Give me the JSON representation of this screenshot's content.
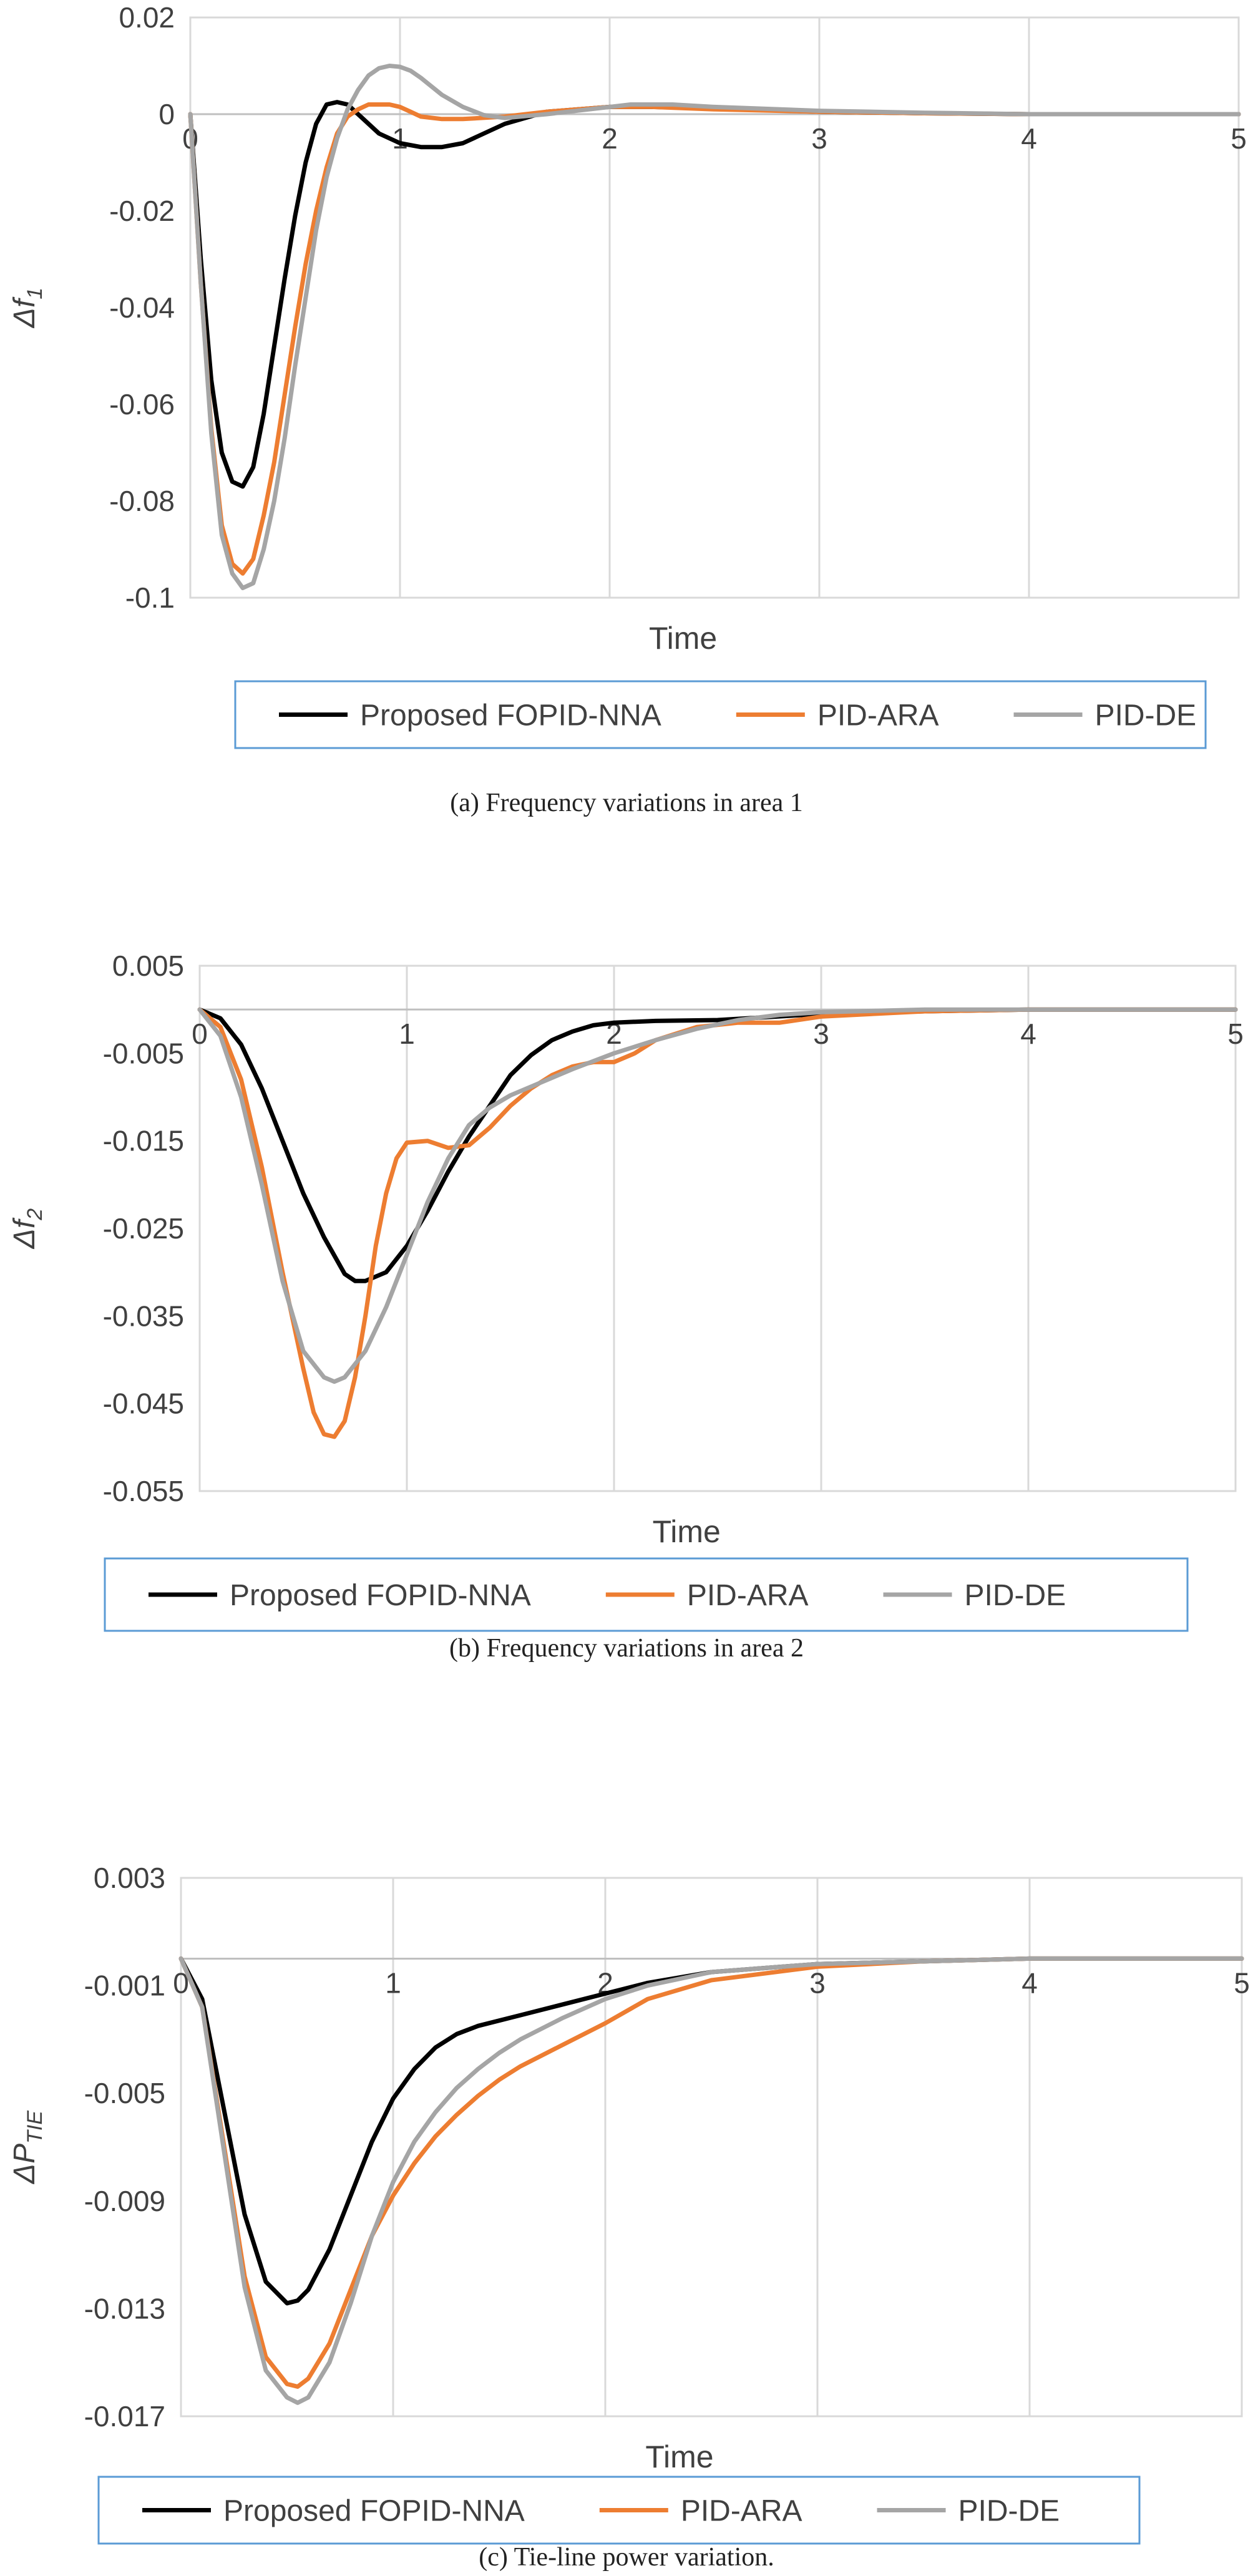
{
  "chart_data": [
    {
      "type": "line",
      "caption": "(a) Frequency variations in area 1",
      "xlabel": "Time",
      "ylabel": {
        "prefix": "Δ",
        "main": "f",
        "sub": "1"
      },
      "xlim": [
        0,
        5
      ],
      "ylim": [
        -0.1,
        0.02
      ],
      "x_ticks": [
        "0",
        "1",
        "2",
        "3",
        "4",
        "5"
      ],
      "y_ticks": [
        {
          "v": 0.02,
          "label": "0.02"
        },
        {
          "v": 0,
          "label": "0"
        },
        {
          "v": -0.02,
          "label": "-0.02"
        },
        {
          "v": -0.04,
          "label": "-0.04"
        },
        {
          "v": -0.06,
          "label": "-0.06"
        },
        {
          "v": -0.08,
          "label": "-0.08"
        },
        {
          "v": -0.1,
          "label": "-0.1"
        }
      ],
      "grid": true,
      "legend_position": "bottom",
      "series": [
        {
          "name": "Proposed FOPID-NNA",
          "color": "#000000",
          "x": [
            0,
            0.05,
            0.1,
            0.15,
            0.2,
            0.25,
            0.3,
            0.35,
            0.4,
            0.45,
            0.5,
            0.55,
            0.6,
            0.65,
            0.7,
            0.75,
            0.8,
            0.85,
            0.9,
            1.0,
            1.1,
            1.2,
            1.3,
            1.4,
            1.5,
            1.7,
            2.0,
            2.2,
            2.5,
            3.0,
            3.5,
            4.0,
            5.0
          ],
          "y": [
            0,
            -0.03,
            -0.055,
            -0.07,
            -0.076,
            -0.077,
            -0.073,
            -0.062,
            -0.048,
            -0.034,
            -0.021,
            -0.01,
            -0.002,
            0.002,
            0.0025,
            0.002,
            0.0,
            -0.002,
            -0.004,
            -0.006,
            -0.0068,
            -0.0068,
            -0.006,
            -0.004,
            -0.002,
            0.0005,
            0.0015,
            0.0015,
            0.0012,
            0.0005,
            0.0002,
            0.0,
            0.0
          ]
        },
        {
          "name": "PID-ARA",
          "color": "#ED7D31",
          "x": [
            0,
            0.05,
            0.1,
            0.15,
            0.2,
            0.25,
            0.3,
            0.35,
            0.4,
            0.45,
            0.5,
            0.55,
            0.6,
            0.65,
            0.7,
            0.75,
            0.8,
            0.85,
            0.9,
            0.95,
            1.0,
            1.05,
            1.1,
            1.2,
            1.3,
            1.5,
            1.7,
            2.0,
            2.2,
            2.5,
            3.0,
            3.5,
            4.0,
            5.0
          ],
          "y": [
            0,
            -0.035,
            -0.065,
            -0.085,
            -0.093,
            -0.095,
            -0.092,
            -0.083,
            -0.072,
            -0.058,
            -0.044,
            -0.031,
            -0.02,
            -0.011,
            -0.004,
            -0.0005,
            0.001,
            0.002,
            0.002,
            0.002,
            0.0015,
            0.0005,
            -0.0005,
            -0.001,
            -0.001,
            -0.0005,
            0.0005,
            0.0015,
            0.0015,
            0.001,
            0.0005,
            0.0002,
            0.0,
            0.0
          ]
        },
        {
          "name": "PID-DE",
          "color": "#A5A5A5",
          "x": [
            0,
            0.05,
            0.1,
            0.15,
            0.2,
            0.25,
            0.3,
            0.35,
            0.4,
            0.45,
            0.5,
            0.55,
            0.6,
            0.65,
            0.7,
            0.75,
            0.8,
            0.85,
            0.9,
            0.95,
            1.0,
            1.05,
            1.1,
            1.2,
            1.3,
            1.4,
            1.5,
            1.7,
            1.9,
            2.1,
            2.3,
            2.5,
            3.0,
            3.5,
            4.0,
            5.0
          ],
          "y": [
            0,
            -0.035,
            -0.066,
            -0.087,
            -0.095,
            -0.098,
            -0.097,
            -0.09,
            -0.08,
            -0.067,
            -0.052,
            -0.038,
            -0.024,
            -0.013,
            -0.005,
            0.001,
            0.005,
            0.008,
            0.0095,
            0.01,
            0.0098,
            0.009,
            0.0075,
            0.004,
            0.0015,
            -0.0002,
            -0.0008,
            0.0,
            0.001,
            0.002,
            0.002,
            0.0015,
            0.0007,
            0.0003,
            0.0,
            0.0
          ]
        }
      ]
    },
    {
      "type": "line",
      "caption": "(b) Frequency variations in area 2",
      "xlabel": "Time",
      "ylabel": {
        "prefix": "Δ",
        "main": "f",
        "sub": "2"
      },
      "xlim": [
        0,
        5
      ],
      "ylim": [
        -0.055,
        0.005
      ],
      "x_ticks": [
        "0",
        "1",
        "2",
        "3",
        "4",
        "5"
      ],
      "y_ticks": [
        {
          "v": 0.005,
          "label": "0.005"
        },
        {
          "v": -0.005,
          "label": "-0.005"
        },
        {
          "v": -0.015,
          "label": "-0.015"
        },
        {
          "v": -0.025,
          "label": "-0.025"
        },
        {
          "v": -0.035,
          "label": "-0.035"
        },
        {
          "v": -0.045,
          "label": "-0.045"
        },
        {
          "v": -0.055,
          "label": "-0.055"
        }
      ],
      "grid": true,
      "legend_position": "bottom",
      "series": [
        {
          "name": "Proposed FOPID-NNA",
          "color": "#000000",
          "x": [
            0,
            0.1,
            0.2,
            0.3,
            0.4,
            0.5,
            0.6,
            0.7,
            0.75,
            0.8,
            0.9,
            1.0,
            1.1,
            1.2,
            1.3,
            1.4,
            1.5,
            1.6,
            1.7,
            1.8,
            1.9,
            2.0,
            2.2,
            2.5,
            3.0,
            3.5,
            4.0,
            5.0
          ],
          "y": [
            0,
            -0.001,
            -0.004,
            -0.009,
            -0.015,
            -0.021,
            -0.026,
            -0.0302,
            -0.031,
            -0.031,
            -0.03,
            -0.027,
            -0.023,
            -0.0185,
            -0.0145,
            -0.011,
            -0.0075,
            -0.0052,
            -0.0035,
            -0.0025,
            -0.0018,
            -0.0015,
            -0.0013,
            -0.0012,
            -0.0005,
            -0.0002,
            0.0,
            0.0
          ]
        },
        {
          "name": "PID-ARA",
          "color": "#ED7D31",
          "x": [
            0,
            0.1,
            0.2,
            0.3,
            0.4,
            0.5,
            0.55,
            0.6,
            0.65,
            0.7,
            0.75,
            0.8,
            0.85,
            0.9,
            0.95,
            1.0,
            1.1,
            1.2,
            1.3,
            1.4,
            1.5,
            1.6,
            1.7,
            1.8,
            1.9,
            2.0,
            2.1,
            2.2,
            2.4,
            2.6,
            2.8,
            3.0,
            3.5,
            4.0,
            5.0
          ],
          "y": [
            0,
            -0.002,
            -0.008,
            -0.018,
            -0.03,
            -0.041,
            -0.046,
            -0.0485,
            -0.0488,
            -0.047,
            -0.042,
            -0.035,
            -0.027,
            -0.021,
            -0.017,
            -0.0152,
            -0.015,
            -0.0158,
            -0.0155,
            -0.0135,
            -0.011,
            -0.009,
            -0.0075,
            -0.0065,
            -0.006,
            -0.006,
            -0.005,
            -0.0035,
            -0.002,
            -0.0015,
            -0.0015,
            -0.0008,
            -0.0002,
            0.0,
            0.0
          ]
        },
        {
          "name": "PID-DE",
          "color": "#A5A5A5",
          "x": [
            0,
            0.1,
            0.2,
            0.3,
            0.4,
            0.5,
            0.6,
            0.65,
            0.7,
            0.8,
            0.9,
            1.0,
            1.1,
            1.2,
            1.3,
            1.4,
            1.5,
            1.6,
            1.8,
            2.0,
            2.2,
            2.4,
            2.6,
            2.8,
            3.0,
            3.5,
            4.0,
            5.0
          ],
          "y": [
            0,
            -0.003,
            -0.01,
            -0.02,
            -0.031,
            -0.039,
            -0.042,
            -0.0425,
            -0.042,
            -0.039,
            -0.034,
            -0.028,
            -0.022,
            -0.017,
            -0.0132,
            -0.0112,
            -0.0098,
            -0.0088,
            -0.0068,
            -0.005,
            -0.0035,
            -0.0022,
            -0.0012,
            -0.0006,
            -0.0003,
            0.0,
            0.0,
            0.0
          ]
        }
      ]
    },
    {
      "type": "line",
      "caption": "(c) Tie-line power variation.",
      "xlabel": "Time",
      "ylabel": {
        "prefix": "Δ",
        "main": "P",
        "sub": "TIE"
      },
      "xlim": [
        0,
        5
      ],
      "ylim": [
        -0.017,
        0.003
      ],
      "x_ticks": [
        "0",
        "1",
        "2",
        "3",
        "4",
        "5"
      ],
      "y_ticks": [
        {
          "v": 0.003,
          "label": "0.003"
        },
        {
          "v": -0.001,
          "label": "-0.001"
        },
        {
          "v": -0.005,
          "label": "-0.005"
        },
        {
          "v": -0.009,
          "label": "-0.009"
        },
        {
          "v": -0.013,
          "label": "-0.013"
        },
        {
          "v": -0.017,
          "label": "-0.017"
        }
      ],
      "grid": true,
      "legend_position": "bottom",
      "series": [
        {
          "name": "Proposed FOPID-NNA",
          "color": "#000000",
          "x": [
            0,
            0.1,
            0.2,
            0.3,
            0.4,
            0.5,
            0.55,
            0.6,
            0.7,
            0.8,
            0.9,
            1.0,
            1.1,
            1.2,
            1.3,
            1.4,
            1.6,
            1.8,
            2.0,
            2.2,
            2.5,
            3.0,
            3.5,
            4.0,
            5.0
          ],
          "y": [
            0,
            -0.0015,
            -0.0055,
            -0.0095,
            -0.012,
            -0.0128,
            -0.0127,
            -0.0123,
            -0.0108,
            -0.0088,
            -0.0068,
            -0.0052,
            -0.0041,
            -0.0033,
            -0.0028,
            -0.0025,
            -0.0021,
            -0.0017,
            -0.0013,
            -0.0009,
            -0.0005,
            -0.0002,
            -0.0001,
            0.0,
            0.0
          ]
        },
        {
          "name": "PID-ARA",
          "color": "#ED7D31",
          "x": [
            0,
            0.1,
            0.2,
            0.3,
            0.4,
            0.5,
            0.55,
            0.6,
            0.7,
            0.8,
            0.9,
            1.0,
            1.1,
            1.2,
            1.3,
            1.4,
            1.5,
            1.6,
            1.8,
            2.0,
            2.2,
            2.5,
            3.0,
            3.5,
            4.0,
            5.0
          ],
          "y": [
            0,
            -0.0018,
            -0.0068,
            -0.0118,
            -0.0148,
            -0.0158,
            -0.0159,
            -0.0156,
            -0.0143,
            -0.0123,
            -0.0103,
            -0.0088,
            -0.0076,
            -0.0066,
            -0.0058,
            -0.0051,
            -0.0045,
            -0.004,
            -0.0032,
            -0.0024,
            -0.0015,
            -0.0008,
            -0.0003,
            -0.0001,
            0.0,
            0.0
          ]
        },
        {
          "name": "PID-DE",
          "color": "#A5A5A5",
          "x": [
            0,
            0.1,
            0.2,
            0.3,
            0.4,
            0.5,
            0.55,
            0.6,
            0.7,
            0.8,
            0.9,
            1.0,
            1.1,
            1.2,
            1.3,
            1.4,
            1.5,
            1.6,
            1.8,
            2.0,
            2.2,
            2.5,
            3.0,
            3.5,
            4.0,
            5.0
          ],
          "y": [
            0,
            -0.0018,
            -0.007,
            -0.0122,
            -0.0153,
            -0.0163,
            -0.0165,
            -0.0163,
            -0.015,
            -0.0128,
            -0.0103,
            -0.0083,
            -0.0068,
            -0.0057,
            -0.0048,
            -0.0041,
            -0.0035,
            -0.003,
            -0.0022,
            -0.0015,
            -0.001,
            -0.0005,
            -0.0002,
            -0.0001,
            0.0,
            0.0
          ]
        }
      ]
    }
  ]
}
